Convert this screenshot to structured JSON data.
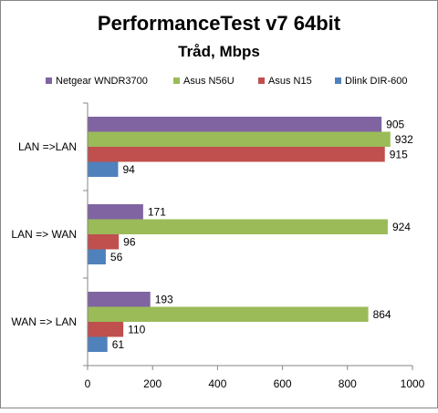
{
  "chart_data": {
    "type": "bar",
    "orientation": "horizontal",
    "title": "PerformanceTest v7  64bit",
    "subtitle": "Tråd, Mbps",
    "categories": [
      "LAN =>LAN",
      "LAN => WAN",
      "WAN => LAN"
    ],
    "series": [
      {
        "name": "Netgear WNDR3700",
        "color": "#8064a2",
        "values": [
          905,
          171,
          193
        ]
      },
      {
        "name": "Asus N56U",
        "color": "#9bbb59",
        "values": [
          932,
          924,
          864
        ]
      },
      {
        "name": "Asus N15",
        "color": "#c0504d",
        "values": [
          915,
          96,
          110
        ]
      },
      {
        "name": "Dlink DIR-600",
        "color": "#4f81bd",
        "values": [
          94,
          56,
          61
        ]
      }
    ],
    "xlim": [
      0,
      1000
    ],
    "xticks": [
      0,
      200,
      400,
      600,
      800,
      1000
    ],
    "grid": false,
    "legend_position": "top",
    "data_labels": true
  }
}
